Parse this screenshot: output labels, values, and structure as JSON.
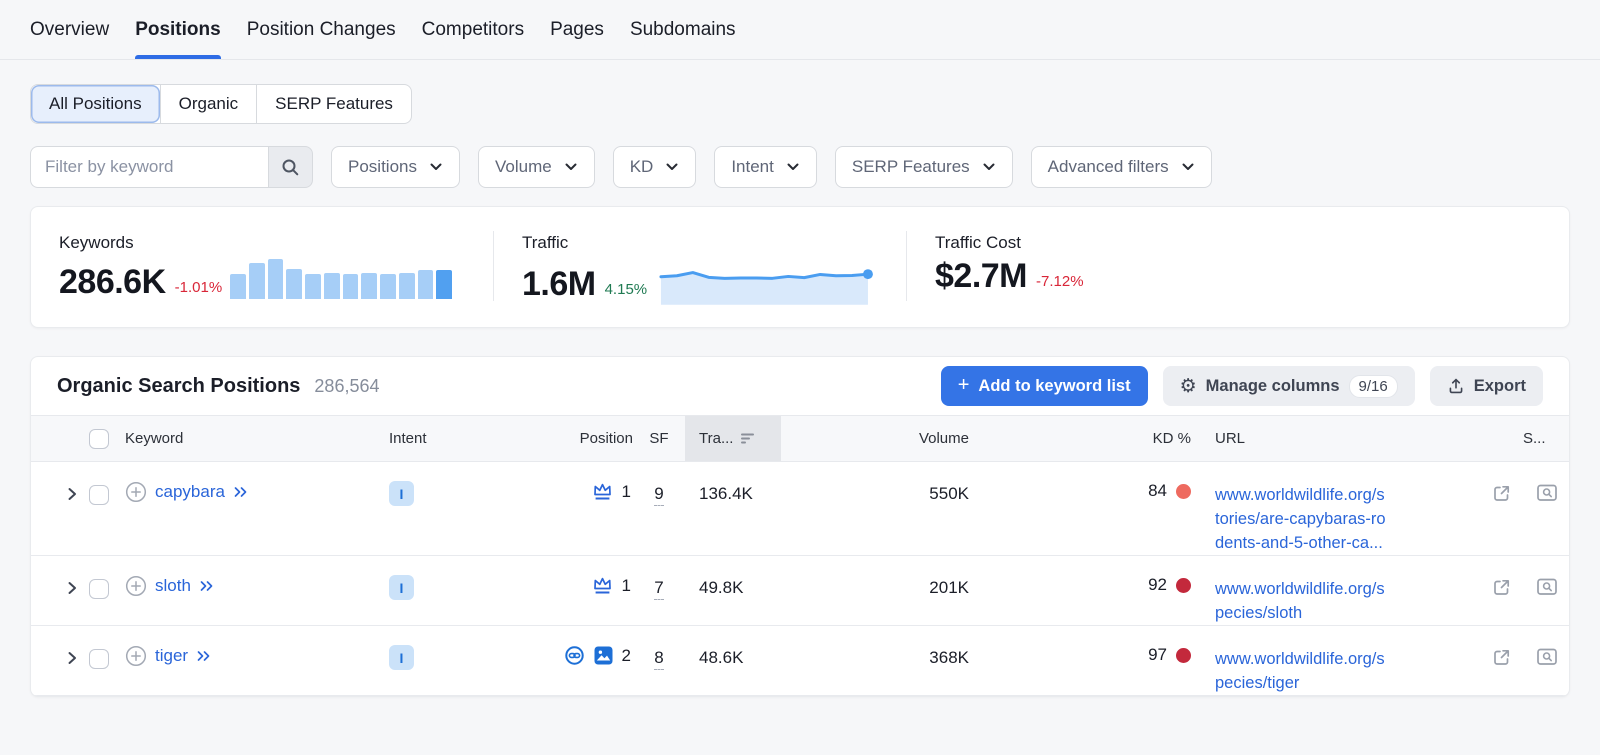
{
  "nav": {
    "tabs": [
      {
        "label": "Overview",
        "active": false
      },
      {
        "label": "Positions",
        "active": true
      },
      {
        "label": "Position Changes",
        "active": false
      },
      {
        "label": "Competitors",
        "active": false
      },
      {
        "label": "Pages",
        "active": false
      },
      {
        "label": "Subdomains",
        "active": false
      }
    ]
  },
  "view_switch": {
    "options": [
      {
        "label": "All Positions",
        "active": true
      },
      {
        "label": "Organic",
        "active": false
      },
      {
        "label": "SERP Features",
        "active": false
      }
    ]
  },
  "filters": {
    "keyword_placeholder": "Filter by keyword",
    "dropdowns": [
      "Positions",
      "Volume",
      "KD",
      "Intent",
      "SERP Features",
      "Advanced filters"
    ]
  },
  "stats": {
    "keywords": {
      "label": "Keywords",
      "value": "286.6K",
      "change": "-1.01%"
    },
    "traffic": {
      "label": "Traffic",
      "value": "1.6M",
      "change": "4.15%"
    },
    "traffic_cost": {
      "label": "Traffic Cost",
      "value": "$2.7M",
      "change": "-7.12%"
    }
  },
  "chart_data": [
    {
      "type": "bar",
      "title": "Keywords trend sparkline",
      "values": [
        60,
        86,
        97,
        72,
        60,
        64,
        61,
        64,
        61,
        64,
        70,
        70
      ],
      "ylim": [
        0,
        100
      ],
      "colors": {
        "bar": "#a6cef7",
        "last_bar": "#51a0f0"
      }
    },
    {
      "type": "area",
      "title": "Traffic trend sparkline",
      "values": [
        76,
        79,
        89,
        74,
        71,
        72,
        72,
        71,
        77,
        73,
        83,
        79,
        80,
        84
      ],
      "ylim": [
        0,
        100
      ],
      "colors": {
        "line": "#4a9df0",
        "fill": "#d9e9fb"
      }
    }
  ],
  "table": {
    "title": "Organic Search Positions",
    "count": "286,564",
    "add_button": "Add to keyword list",
    "manage_columns_button": "Manage columns",
    "manage_columns_badge": "9/16",
    "export_button": "Export",
    "sorted_column": "Tra...",
    "columns": {
      "keyword": "Keyword",
      "intent": "Intent",
      "position": "Position",
      "sf": "SF",
      "traffic": "Tra...",
      "volume": "Volume",
      "kd": "KD %",
      "url": "URL",
      "serp": "S..."
    },
    "rows": [
      {
        "keyword": "capybara",
        "intent": "I",
        "position": "1",
        "position_features": [
          "featured-snippet"
        ],
        "sf": "9",
        "traffic": "136.4K",
        "volume": "550K",
        "kd": "84",
        "kd_dot_color": "#ee6a5f",
        "url": "www.worldwildlife.org/s\ntories/are-capybaras-ro\ndents-and-5-other-ca..."
      },
      {
        "keyword": "sloth",
        "intent": "I",
        "position": "1",
        "position_features": [
          "featured-snippet"
        ],
        "sf": "7",
        "traffic": "49.8K",
        "volume": "201K",
        "kd": "92",
        "kd_dot_color": "#c3293c",
        "url": "www.worldwildlife.org/s\npecies/sloth"
      },
      {
        "keyword": "tiger",
        "intent": "I",
        "position": "2",
        "position_features": [
          "url",
          "image-pack"
        ],
        "sf": "8",
        "traffic": "48.6K",
        "volume": "368K",
        "kd": "97",
        "kd_dot_color": "#c3293c",
        "url": "www.worldwildlife.org/s\npecies/tiger"
      }
    ]
  }
}
